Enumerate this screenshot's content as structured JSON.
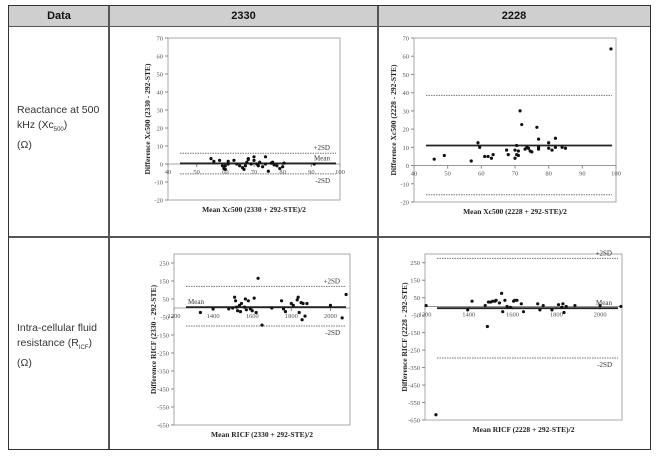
{
  "table": {
    "headers": [
      "Data",
      "2330",
      "2228"
    ],
    "rows": [
      {
        "label_line1": "Reactance at 500",
        "label_line2_pre": "kHz (Xc",
        "label_line2_sub": "500",
        "label_line2_post": ")",
        "label_line3": "(Ω)"
      },
      {
        "label_line1": "Intra-cellular fluid",
        "label_line2_pre": "resistance (R",
        "label_line2_sub": "ICF",
        "label_line2_post": ")",
        "label_line3": "(Ω)"
      }
    ]
  },
  "chart_data": [
    {
      "type": "scatter",
      "title": "",
      "xlabel": "Mean Xc500 (2330 + 292-STE)/2",
      "ylabel": "Difference Xc500 (2330 - 292-STE)",
      "xticks": [
        40,
        50,
        60,
        70,
        80,
        90,
        100
      ],
      "yticks": [
        -20,
        -10,
        0,
        10,
        20,
        30,
        40,
        50,
        60,
        70
      ],
      "xlim": [
        40,
        100
      ],
      "ylim": [
        -20,
        70
      ],
      "mean": 0.3,
      "plus2sd": 6,
      "minus2sd": -5.5,
      "annotations": [
        "+2SD",
        "Mean",
        "-2SD"
      ],
      "points": [
        [
          55,
          3
        ],
        [
          56,
          1.5
        ],
        [
          58,
          2
        ],
        [
          59,
          -1
        ],
        [
          59.5,
          -2.5
        ],
        [
          60,
          -1
        ],
        [
          60,
          -3
        ],
        [
          61,
          1.5
        ],
        [
          61,
          0
        ],
        [
          63,
          2
        ],
        [
          64,
          0
        ],
        [
          65,
          -1
        ],
        [
          66,
          -2
        ],
        [
          66.5,
          -3
        ],
        [
          67,
          -1
        ],
        [
          67.5,
          1
        ],
        [
          68,
          2.5
        ],
        [
          68,
          3
        ],
        [
          69,
          0
        ],
        [
          70,
          4
        ],
        [
          70,
          2
        ],
        [
          71,
          0
        ],
        [
          71.5,
          -1
        ],
        [
          72,
          1
        ],
        [
          73,
          -1.5
        ],
        [
          74,
          4
        ],
        [
          74,
          0
        ],
        [
          75,
          -4
        ],
        [
          76,
          0.5
        ],
        [
          76.5,
          1
        ],
        [
          77,
          -0.5
        ],
        [
          78,
          -1
        ],
        [
          79,
          -2.5
        ],
        [
          80,
          -1.5
        ],
        [
          80.5,
          0.5
        ],
        [
          91,
          0
        ]
      ]
    },
    {
      "type": "scatter",
      "title": "",
      "xlabel": "Mean Xc500 (2228 + 292-STE)/2",
      "ylabel": "Difference Xc500 (2228 - 292-STE)",
      "xticks": [
        40,
        50,
        60,
        70,
        80,
        90,
        100
      ],
      "yticks": [
        -20,
        -10,
        0,
        10,
        20,
        30,
        40,
        50,
        60,
        70
      ],
      "xlim": [
        40,
        100
      ],
      "ylim": [
        -20,
        70
      ],
      "mean": 11,
      "plus2sd": 38.5,
      "minus2sd": -16,
      "annotations": [],
      "points": [
        [
          46,
          3.5
        ],
        [
          49,
          5.5
        ],
        [
          57,
          2.5
        ],
        [
          59,
          12.5
        ],
        [
          59.5,
          10
        ],
        [
          61,
          5
        ],
        [
          62,
          5
        ],
        [
          63,
          4
        ],
        [
          63.5,
          6
        ],
        [
          67.5,
          8.5
        ],
        [
          68,
          6
        ],
        [
          70,
          8.5
        ],
        [
          70,
          4
        ],
        [
          70.5,
          11
        ],
        [
          70.5,
          6
        ],
        [
          71,
          8
        ],
        [
          71,
          5.5
        ],
        [
          71.5,
          30
        ],
        [
          72,
          22.5
        ],
        [
          73,
          9
        ],
        [
          73.5,
          10
        ],
        [
          74,
          9.5
        ],
        [
          74.5,
          8
        ],
        [
          75,
          7.5
        ],
        [
          76.5,
          21
        ],
        [
          77,
          14.5
        ],
        [
          77,
          10
        ],
        [
          77,
          9
        ],
        [
          80,
          12.5
        ],
        [
          80,
          9.5
        ],
        [
          81,
          8.5
        ],
        [
          82,
          15
        ],
        [
          82,
          10
        ],
        [
          84,
          10
        ],
        [
          85,
          9.5
        ],
        [
          98.5,
          64
        ]
      ]
    },
    {
      "type": "scatter",
      "title": "",
      "xlabel": "Mean RICF (2330 + 292-STE)/2",
      "ylabel": "Difference RICF (2330 - 292-STE)",
      "xticks": [
        1200,
        1400,
        1600,
        1800,
        2000
      ],
      "yticks": [
        -650,
        -550,
        -450,
        -350,
        -250,
        -150,
        -50,
        50,
        150,
        250
      ],
      "xlim": [
        1200,
        2100
      ],
      "ylim": [
        -650,
        300
      ],
      "mean": 5,
      "plus2sd": 120,
      "minus2sd": -100,
      "annotations": [
        "+2SD",
        "Mean",
        "-2SD"
      ],
      "points": [
        [
          1335,
          -25
        ],
        [
          1400,
          -5
        ],
        [
          1480,
          -5
        ],
        [
          1500,
          0
        ],
        [
          1510,
          60
        ],
        [
          1515,
          40
        ],
        [
          1520,
          5
        ],
        [
          1525,
          -15
        ],
        [
          1535,
          15
        ],
        [
          1540,
          -20
        ],
        [
          1545,
          25
        ],
        [
          1560,
          5
        ],
        [
          1565,
          50
        ],
        [
          1570,
          -10
        ],
        [
          1580,
          40
        ],
        [
          1590,
          -5
        ],
        [
          1600,
          -15
        ],
        [
          1610,
          55
        ],
        [
          1620,
          -25
        ],
        [
          1630,
          165
        ],
        [
          1650,
          -95
        ],
        [
          1700,
          0
        ],
        [
          1750,
          40
        ],
        [
          1760,
          -5
        ],
        [
          1770,
          -20
        ],
        [
          1800,
          25
        ],
        [
          1810,
          15
        ],
        [
          1830,
          45
        ],
        [
          1835,
          60
        ],
        [
          1840,
          -25
        ],
        [
          1850,
          30
        ],
        [
          1855,
          -65
        ],
        [
          1860,
          25
        ],
        [
          1870,
          -45
        ],
        [
          1880,
          25
        ],
        [
          2000,
          15
        ],
        [
          2060,
          -55
        ],
        [
          2080,
          75
        ]
      ]
    },
    {
      "type": "scatter",
      "title": "",
      "xlabel": "Mean RICF (2228 + 292-STE)/2",
      "ylabel": "Difference RICF (2228 - 292-STE)",
      "xticks": [
        1200,
        1400,
        1600,
        1800,
        2000
      ],
      "yticks": [
        -650,
        -550,
        -450,
        -350,
        -250,
        -150,
        -50,
        50,
        150,
        250
      ],
      "xlim": [
        1200,
        2100
      ],
      "ylim": [
        -650,
        300
      ],
      "mean": -10,
      "plus2sd": 275,
      "minus2sd": -295,
      "annotations": [
        "+2SD",
        "Mean",
        "-2SD"
      ],
      "points": [
        [
          1205,
          5
        ],
        [
          1250,
          -620
        ],
        [
          1395,
          -20
        ],
        [
          1415,
          30
        ],
        [
          1475,
          5
        ],
        [
          1485,
          -115
        ],
        [
          1490,
          25
        ],
        [
          1500,
          25
        ],
        [
          1510,
          30
        ],
        [
          1520,
          30
        ],
        [
          1525,
          35
        ],
        [
          1540,
          20
        ],
        [
          1550,
          75
        ],
        [
          1555,
          -30
        ],
        [
          1565,
          35
        ],
        [
          1575,
          0
        ],
        [
          1590,
          -5
        ],
        [
          1605,
          30
        ],
        [
          1610,
          35
        ],
        [
          1620,
          35
        ],
        [
          1640,
          15
        ],
        [
          1650,
          -30
        ],
        [
          1715,
          15
        ],
        [
          1725,
          -20
        ],
        [
          1740,
          5
        ],
        [
          1780,
          -20
        ],
        [
          1810,
          10
        ],
        [
          1825,
          -5
        ],
        [
          1830,
          15
        ],
        [
          1835,
          -35
        ],
        [
          1845,
          0
        ],
        [
          1885,
          5
        ],
        [
          2000,
          5
        ],
        [
          2095,
          0
        ]
      ]
    }
  ]
}
